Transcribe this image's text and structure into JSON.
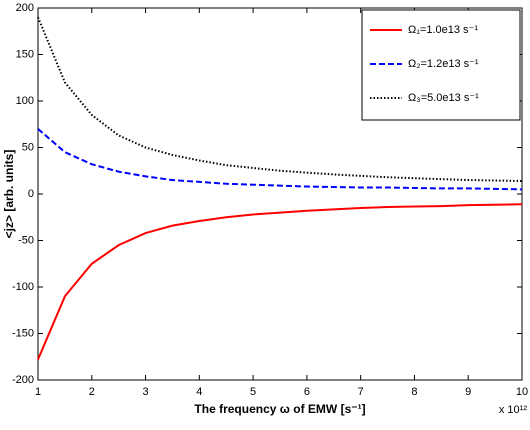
{
  "chart_data": {
    "type": "line",
    "xlabel": "The frequency ω of EMW [s⁻¹]",
    "ylabel": "<jz> [arb. units]",
    "x_multiplier": "x 10¹²",
    "x": [
      1,
      1.5,
      2,
      2.5,
      3,
      3.5,
      4,
      4.5,
      5,
      5.5,
      6,
      6.5,
      7,
      7.5,
      8,
      8.5,
      9,
      9.5,
      10
    ],
    "series": [
      {
        "name": "Ω₁=1.0e13 s⁻¹",
        "color": "#ff0000",
        "linestyle": "solid",
        "values": [
          -178,
          -110,
          -75,
          -55,
          -42,
          -34,
          -29,
          -25,
          -22,
          -20,
          -18,
          -16.5,
          -15,
          -14,
          -13.5,
          -13,
          -12,
          -11.5,
          -11
        ]
      },
      {
        "name": "Ω₂=1.2e13 s⁻¹",
        "color": "#0000ff",
        "linestyle": "dashed",
        "values": [
          70,
          45,
          32,
          24,
          19,
          15,
          13,
          11,
          10,
          9,
          8,
          7.5,
          7,
          7,
          6.5,
          6,
          6,
          5.5,
          5
        ]
      },
      {
        "name": "Ω₃=5.0e13 s⁻¹",
        "color": "#000000",
        "linestyle": "dotted",
        "values": [
          190,
          120,
          85,
          63,
          50,
          42,
          36,
          31,
          28,
          25,
          23,
          21,
          19.5,
          18,
          17,
          16,
          15,
          14.5,
          14
        ]
      }
    ],
    "xlim": [
      1,
      10
    ],
    "xticks": [
      1,
      2,
      3,
      4,
      5,
      6,
      7,
      8,
      9,
      10
    ],
    "ylim": [
      -200,
      200
    ],
    "yticks": [
      -200,
      -150,
      -100,
      -50,
      0,
      50,
      100,
      150,
      200
    ],
    "grid": false,
    "legend": "upper right"
  }
}
